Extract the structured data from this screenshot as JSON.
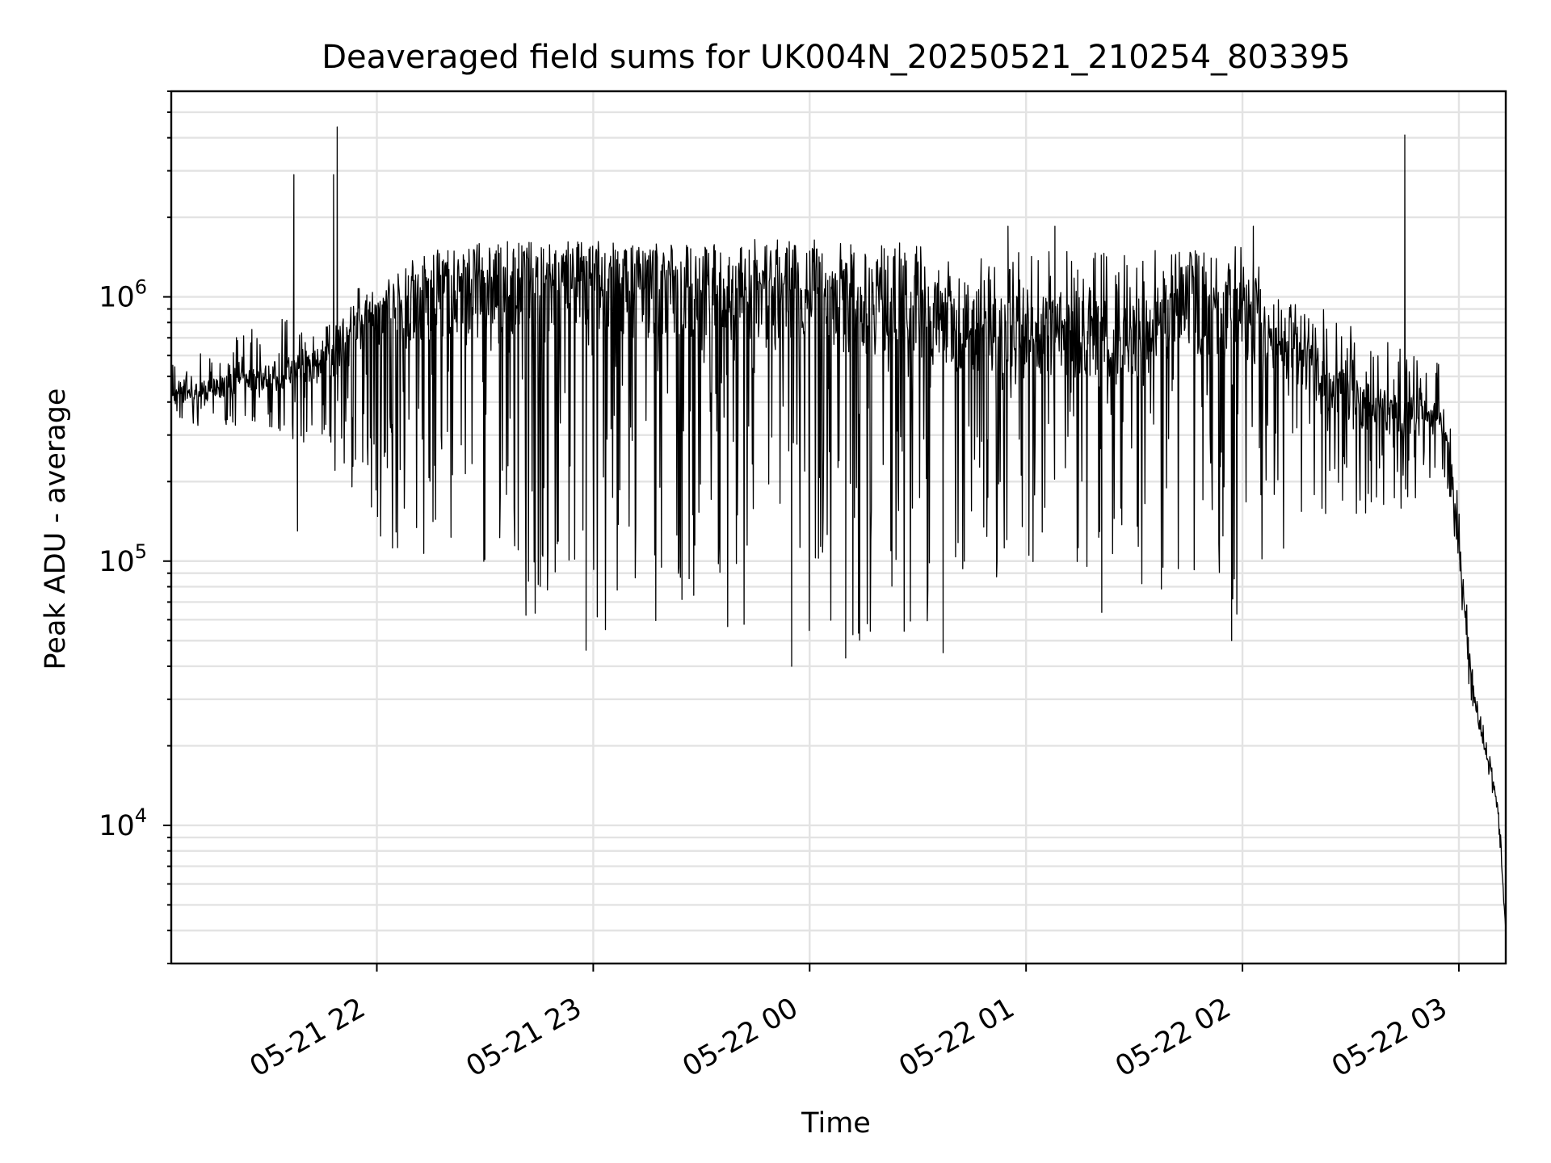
{
  "chart_data": {
    "type": "line",
    "title": "Deaveraged field sums for UK004N_20250521_210254_803395",
    "xlabel": "Time",
    "ylabel": "Peak ADU - average",
    "yscale": "log",
    "ylim": [
      3000,
      6000000
    ],
    "xlim": [
      "2025-05-21 21:03",
      "2025-05-22 03:13"
    ],
    "x_ticks": [
      {
        "value": "2025-05-21 22:00",
        "label": "05-21 22"
      },
      {
        "value": "2025-05-21 23:00",
        "label": "05-21 23"
      },
      {
        "value": "2025-05-22 00:00",
        "label": "05-22 00"
      },
      {
        "value": "2025-05-22 01:00",
        "label": "05-22 01"
      },
      {
        "value": "2025-05-22 02:00",
        "label": "05-22 02"
      },
      {
        "value": "2025-05-22 03:00",
        "label": "05-22 03"
      }
    ],
    "y_ticks": [
      {
        "value": 10000,
        "base": "10",
        "exp": "4"
      },
      {
        "value": 100000,
        "base": "10",
        "exp": "5"
      },
      {
        "value": 1000000,
        "base": "10",
        "exp": "6"
      }
    ],
    "grid": true,
    "legend": "none",
    "line_color": "#000000",
    "series": [
      {
        "envelope": [
          {
            "x": "2025-05-21 21:03",
            "base": 420000,
            "low": 320000,
            "high": 600000
          },
          {
            "x": "2025-05-21 21:15",
            "base": 450000,
            "low": 330000,
            "high": 650000
          },
          {
            "x": "2025-05-21 21:30",
            "base": 500000,
            "low": 320000,
            "high": 850000
          },
          {
            "x": "2025-05-21 21:45",
            "base": 550000,
            "low": 250000,
            "high": 900000
          },
          {
            "x": "2025-05-21 22:00",
            "base": 850000,
            "low": 120000,
            "high": 1200000
          },
          {
            "x": "2025-05-21 22:15",
            "base": 1000000,
            "low": 80000,
            "high": 1500000
          },
          {
            "x": "2025-05-21 22:30",
            "base": 1100000,
            "low": 70000,
            "high": 1600000
          },
          {
            "x": "2025-05-21 23:00",
            "base": 1050000,
            "low": 48000,
            "high": 1650000
          },
          {
            "x": "2025-05-21 23:30",
            "base": 1050000,
            "low": 60000,
            "high": 1650000
          },
          {
            "x": "2025-05-22 00:00",
            "base": 1000000,
            "low": 45000,
            "high": 1650000
          },
          {
            "x": "2025-05-22 00:30",
            "base": 900000,
            "low": 50000,
            "high": 1600000
          },
          {
            "x": "2025-05-22 00:40",
            "base": 750000,
            "low": 80000,
            "high": 1400000
          },
          {
            "x": "2025-05-22 01:00",
            "base": 700000,
            "low": 90000,
            "high": 1500000
          },
          {
            "x": "2025-05-22 01:30",
            "base": 700000,
            "low": 80000,
            "high": 1500000
          },
          {
            "x": "2025-05-22 01:45",
            "base": 900000,
            "low": 70000,
            "high": 1500000
          },
          {
            "x": "2025-05-22 02:00",
            "base": 850000,
            "low": 60000,
            "high": 1600000
          },
          {
            "x": "2025-05-22 02:15",
            "base": 600000,
            "low": 120000,
            "high": 1000000
          },
          {
            "x": "2025-05-22 02:30",
            "base": 400000,
            "low": 150000,
            "high": 800000
          },
          {
            "x": "2025-05-22 02:45",
            "base": 350000,
            "low": 150000,
            "high": 700000
          },
          {
            "x": "2025-05-22 02:55",
            "base": 350000,
            "low": 230000,
            "high": 550000
          },
          {
            "x": "2025-05-22 02:58",
            "base": 220000,
            "low": 150000,
            "high": 350000
          },
          {
            "x": "2025-05-22 03:00",
            "base": 110000,
            "low": 80000,
            "high": 160000
          },
          {
            "x": "2025-05-22 03:03",
            "base": 40000,
            "low": 30000,
            "high": 50000
          },
          {
            "x": "2025-05-22 03:06",
            "base": 22000,
            "low": 18000,
            "high": 27000
          },
          {
            "x": "2025-05-22 03:09",
            "base": 16000,
            "low": 13000,
            "high": 17500
          },
          {
            "x": "2025-05-22 03:11",
            "base": 11000,
            "low": 9000,
            "high": 13000
          },
          {
            "x": "2025-05-22 03:13",
            "base": 4000,
            "low": 4000,
            "high": 4000
          }
        ],
        "spikes": [
          {
            "x": "2025-05-21 21:37",
            "y": 2900000
          },
          {
            "x": "2025-05-21 21:38",
            "y": 130000
          },
          {
            "x": "2025-05-21 21:48",
            "y": 2900000
          },
          {
            "x": "2025-05-21 21:49",
            "y": 4400000
          },
          {
            "x": "2025-05-21 22:58",
            "y": 46000
          },
          {
            "x": "2025-05-21 23:55",
            "y": 40000
          },
          {
            "x": "2025-05-22 00:10",
            "y": 43000
          },
          {
            "x": "2025-05-22 00:37",
            "y": 45000
          },
          {
            "x": "2025-05-22 00:55",
            "y": 1850000
          },
          {
            "x": "2025-05-22 01:08",
            "y": 1850000
          },
          {
            "x": "2025-05-22 01:21",
            "y": 64000
          },
          {
            "x": "2025-05-22 01:57",
            "y": 50000
          },
          {
            "x": "2025-05-22 02:03",
            "y": 1850000
          },
          {
            "x": "2025-05-22 02:45",
            "y": 4100000
          }
        ]
      }
    ]
  }
}
